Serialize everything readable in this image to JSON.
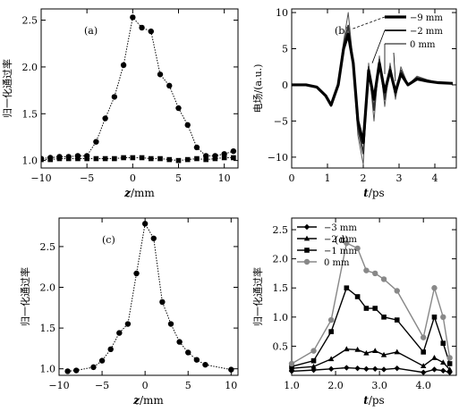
{
  "chart_data": [
    {
      "id": "a",
      "type": "scatter",
      "panel_label": "(a)",
      "xlabel_var": "z",
      "xlabel_unit": "/mm",
      "ylabel": "归一化通过率",
      "xlim": [
        -10,
        11.5
      ],
      "ylim": [
        0.92,
        2.62
      ],
      "xticks": [
        -10,
        -5,
        0,
        5,
        10
      ],
      "yticks": [
        1.0,
        1.5,
        2.0,
        2.5
      ],
      "ytick_labels": [
        "1.0",
        "1.5",
        "2.0",
        "2.5"
      ],
      "series": [
        {
          "marker": "circle",
          "x": [
            -11,
            -10,
            -9,
            -8,
            -7,
            -6,
            -5,
            -4,
            -3,
            -2,
            -1,
            0,
            1,
            2,
            3,
            4,
            5,
            6,
            7,
            8,
            9,
            10,
            11
          ],
          "y": [
            1.02,
            1.02,
            1.03,
            1.04,
            1.04,
            1.05,
            1.05,
            1.2,
            1.45,
            1.68,
            2.02,
            2.53,
            2.42,
            2.38,
            1.92,
            1.8,
            1.56,
            1.38,
            1.14,
            1.05,
            1.05,
            1.07,
            1.1
          ]
        },
        {
          "marker": "square",
          "x": [
            -11,
            -10,
            -9,
            -8,
            -7,
            -6,
            -5,
            -4,
            -3,
            -2,
            -1,
            0,
            1,
            2,
            3,
            4,
            5,
            6,
            7,
            8,
            9,
            10,
            11
          ],
          "y": [
            1.01,
            1.01,
            1.01,
            1.02,
            1.02,
            1.02,
            1.02,
            1.02,
            1.02,
            1.02,
            1.03,
            1.03,
            1.03,
            1.02,
            1.02,
            1.01,
            1.0,
            1.01,
            1.02,
            1.01,
            1.02,
            1.03,
            1.03
          ]
        }
      ]
    },
    {
      "id": "b",
      "type": "line",
      "panel_label": "(b)",
      "xlabel_var": "t",
      "xlabel_unit": "/ps",
      "ylabel": "电场/(a.u.)",
      "xlim": [
        0,
        4.6
      ],
      "ylim": [
        -11.5,
        10.5
      ],
      "xticks": [
        0,
        1,
        2,
        3,
        4
      ],
      "yticks": [
        -10,
        -5,
        0,
        5,
        10
      ],
      "ytick_labels": [
        "-10",
        "-5",
        "0",
        "5",
        "10"
      ],
      "legend_position": "top-right",
      "legend": [
        {
          "label": "−9 mm",
          "style": "thick"
        },
        {
          "label": "−2 mm",
          "style": "medium"
        },
        {
          "label": "0 mm",
          "style": "thin"
        }
      ],
      "series": [
        {
          "style": "thick",
          "x": [
            0,
            0.4,
            0.7,
            0.95,
            1.1,
            1.3,
            1.45,
            1.58,
            1.72,
            1.85,
            2.0,
            2.15,
            2.3,
            2.45,
            2.6,
            2.75,
            2.9,
            3.05,
            3.25,
            3.5,
            3.8,
            4.1,
            4.5
          ],
          "y": [
            0,
            0,
            -0.3,
            -1.5,
            -2.8,
            0,
            5,
            7,
            3,
            -5,
            -8,
            2,
            -2,
            3,
            -1,
            2,
            -1,
            1.5,
            0,
            0.8,
            0.5,
            0.3,
            0.2
          ]
        },
        {
          "style": "medium",
          "x": [
            0,
            0.4,
            0.7,
            0.95,
            1.1,
            1.3,
            1.45,
            1.58,
            1.72,
            1.85,
            2.0,
            2.15,
            2.3,
            2.45,
            2.6,
            2.75,
            2.9,
            3.05,
            3.25,
            3.5,
            3.8,
            4.1,
            4.5
          ],
          "y": [
            0,
            0,
            -0.3,
            -1.5,
            -2.9,
            0,
            5.5,
            8.2,
            3,
            -6,
            -9.5,
            2.5,
            -3.5,
            3.5,
            -2,
            2.5,
            -1.5,
            2,
            0,
            1,
            0.6,
            0.3,
            0.2
          ]
        },
        {
          "style": "thin",
          "x": [
            0,
            0.4,
            0.7,
            0.95,
            1.1,
            1.3,
            1.45,
            1.58,
            1.72,
            1.85,
            2.0,
            2.15,
            2.3,
            2.45,
            2.6,
            2.75,
            2.9,
            3.05,
            3.25,
            3.5,
            3.8,
            4.1,
            4.5
          ],
          "y": [
            0,
            0,
            -0.3,
            -1.5,
            -3.0,
            0,
            6,
            10,
            3,
            -7,
            -11,
            3,
            -5,
            4,
            -3,
            3,
            -2,
            2.5,
            0,
            1.2,
            0.7,
            0.3,
            0.2
          ]
        }
      ]
    },
    {
      "id": "c",
      "type": "scatter",
      "panel_label": "(c)",
      "xlabel_var": "z",
      "xlabel_unit": "/mm",
      "ylabel": "归一化通过率",
      "xlim": [
        -10,
        10.8
      ],
      "ylim": [
        0.92,
        2.85
      ],
      "xticks": [
        -10,
        -5,
        0,
        5,
        10
      ],
      "yticks": [
        1.0,
        1.5,
        2.0,
        2.5
      ],
      "ytick_labels": [
        "1.0",
        "1.5",
        "2.0",
        "2.5"
      ],
      "series": [
        {
          "marker": "circle",
          "x": [
            -9,
            -8,
            -6,
            -5,
            -4,
            -3,
            -2,
            -1,
            0,
            1,
            2,
            3,
            4,
            5,
            6,
            7,
            10
          ],
          "y": [
            0.97,
            0.98,
            1.02,
            1.1,
            1.24,
            1.44,
            1.55,
            2.17,
            2.78,
            2.6,
            1.82,
            1.55,
            1.33,
            1.2,
            1.11,
            1.05,
            0.99
          ]
        }
      ]
    },
    {
      "id": "d",
      "type": "line",
      "panel_label": "(d)",
      "xlabel_var": "t",
      "xlabel_unit": "/ps",
      "ylabel": "归一化通过率",
      "xlim": [
        1.0,
        4.75
      ],
      "ylim": [
        0.0,
        2.7
      ],
      "xticks": [
        1.0,
        2.0,
        3.0,
        4.0
      ],
      "xtick_labels": [
        "1.0",
        "2.0",
        "3.0",
        "4.0"
      ],
      "yticks": [
        0.5,
        1.0,
        1.5,
        2.0,
        2.5
      ],
      "ytick_labels": [
        "0.5",
        "1.0",
        "1.5",
        "2.0",
        "2.5"
      ],
      "legend_position": "top-left",
      "legend": [
        {
          "label": "−3 mm",
          "marker": "diamond",
          "color": "#000000"
        },
        {
          "label": "−2 mm",
          "marker": "triangle",
          "color": "#000000"
        },
        {
          "label": "−1 mm",
          "marker": "square",
          "color": "#000000"
        },
        {
          "label": "0 mm",
          "marker": "circle",
          "color": "#888888"
        }
      ],
      "x": [
        1.0,
        1.5,
        1.9,
        2.25,
        2.5,
        2.7,
        2.9,
        3.1,
        3.4,
        4.0,
        4.25,
        4.45,
        4.6
      ],
      "series": [
        {
          "label": "−3 mm",
          "marker": "diamond",
          "color": "#000000",
          "values": [
            0.07,
            0.09,
            0.11,
            0.13,
            0.12,
            0.11,
            0.11,
            0.1,
            0.12,
            0.05,
            0.1,
            0.08,
            0.05
          ]
        },
        {
          "label": "−2 mm",
          "marker": "triangle",
          "color": "#000000",
          "values": [
            0.12,
            0.15,
            0.28,
            0.45,
            0.44,
            0.38,
            0.42,
            0.35,
            0.4,
            0.16,
            0.3,
            0.22,
            0.1
          ]
        },
        {
          "label": "−1 mm",
          "marker": "square",
          "color": "#000000",
          "values": [
            0.15,
            0.25,
            0.75,
            1.5,
            1.35,
            1.15,
            1.15,
            1.0,
            0.95,
            0.4,
            1.0,
            0.55,
            0.2
          ]
        },
        {
          "label": "0 mm",
          "marker": "circle",
          "color": "#888888",
          "values": [
            0.2,
            0.42,
            0.95,
            2.27,
            2.18,
            1.8,
            1.75,
            1.65,
            1.45,
            0.65,
            1.5,
            1.0,
            0.3
          ]
        }
      ]
    }
  ]
}
